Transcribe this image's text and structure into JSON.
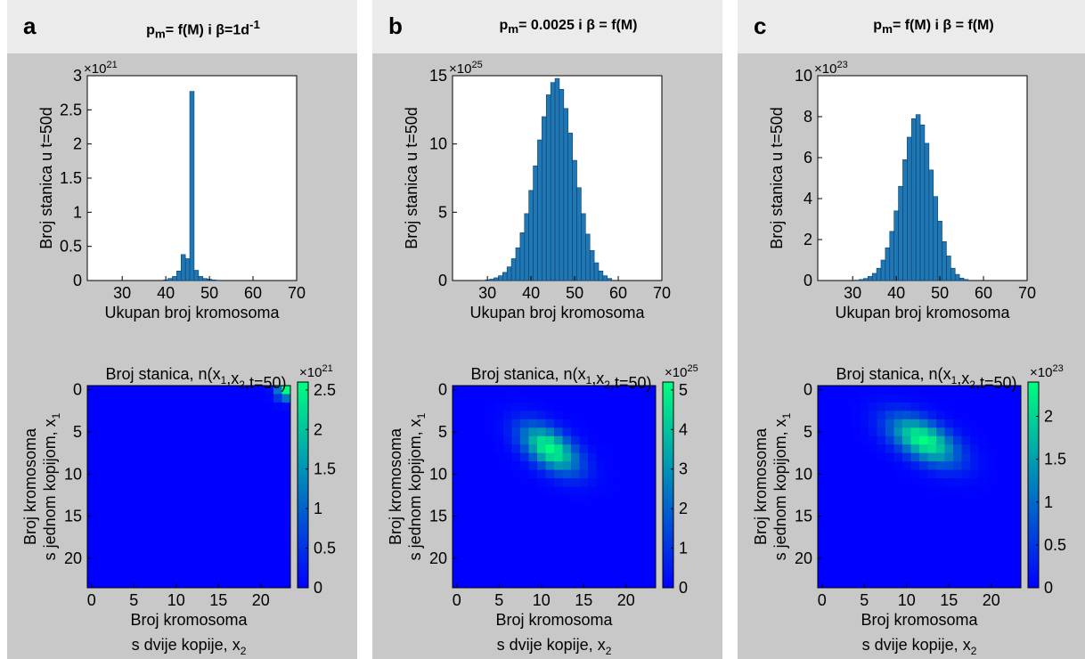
{
  "panels": [
    {
      "letter": "a",
      "title_html": "p<sub>m</sub>= f(M) i β=1d<sup>-1</sup>",
      "hist": {
        "ylabel": "Broj stanica u t=50d",
        "xlabel": "Ukupan broj kromosoma",
        "exp_base": "×10",
        "exp": "21",
        "yticks": [
          "0",
          "0.5",
          "1",
          "1.5",
          "2",
          "2.5",
          "3"
        ],
        "xticks": [
          "30",
          "40",
          "50",
          "60",
          "70"
        ]
      },
      "heat": {
        "title": "Broj stanica, n(x1,x2,t=50)",
        "ylabel1": "Broj kromosoma",
        "ylabel2": "s jednom kopijom, x1",
        "xlabel1": "Broj kromosoma",
        "xlabel2": "s dvije kopije, x2",
        "exp_base": "×10",
        "exp": "21",
        "cticks": [
          "0",
          "0.5",
          "1",
          "1.5",
          "2",
          "2.5"
        ],
        "yticks": [
          "0",
          "5",
          "10",
          "15",
          "20"
        ],
        "xticks": [
          "0",
          "5",
          "10",
          "15",
          "20"
        ]
      }
    },
    {
      "letter": "b",
      "title_html": "p<sub>m</sub>= 0.0025 i β = f(M)",
      "hist": {
        "ylabel": "Broj stanica u t=50d",
        "xlabel": "Ukupan broj kromosoma",
        "exp_base": "×10",
        "exp": "25",
        "yticks": [
          "0",
          "5",
          "10",
          "15"
        ],
        "xticks": [
          "30",
          "40",
          "50",
          "60",
          "70"
        ]
      },
      "heat": {
        "title": "Broj stanica, n(x1,x2,t=50)",
        "ylabel1": "Broj kromosoma",
        "ylabel2": "s jednom kopijom, x1",
        "xlabel1": "Broj kromosoma",
        "xlabel2": "s dvije kopije, x2",
        "exp_base": "×10",
        "exp": "25",
        "cticks": [
          "0",
          "1",
          "2",
          "3",
          "4",
          "5"
        ],
        "yticks": [
          "0",
          "5",
          "10",
          "15",
          "20"
        ],
        "xticks": [
          "0",
          "5",
          "10",
          "15",
          "20"
        ]
      }
    },
    {
      "letter": "c",
      "title_html": "p<sub>m</sub>= f(M) i β = f(M)",
      "hist": {
        "ylabel": "Broj stanica u t=50d",
        "xlabel": "Ukupan broj kromosoma",
        "exp_base": "×10",
        "exp": "23",
        "yticks": [
          "0",
          "2",
          "4",
          "6",
          "8",
          "10"
        ],
        "xticks": [
          "30",
          "40",
          "50",
          "60",
          "70"
        ]
      },
      "heat": {
        "title": "Broj stanica, n(x1,x2,t=50)",
        "ylabel1": "Broj kromosoma",
        "ylabel2": "s jednom kopijom, x1",
        "xlabel1": "Broj kromosoma",
        "xlabel2": "s dvije kopije, x2",
        "exp_base": "×10",
        "exp": "23",
        "cticks": [
          "0",
          "0.5",
          "1",
          "1.5",
          "2"
        ],
        "yticks": [
          "0",
          "5",
          "10",
          "15",
          "20"
        ],
        "xticks": [
          "0",
          "5",
          "10",
          "15",
          "20"
        ]
      }
    }
  ],
  "colors": {
    "bar": "#1f77b4",
    "cmap_low": "#0000ff",
    "cmap_high": "#00ff80",
    "panel_bg": "#c8c8c8",
    "header_bg": "#ebebeb"
  },
  "chart_data": [
    {
      "type": "bar",
      "panel": "a",
      "xlim": [
        22,
        70
      ],
      "ylim": [
        0,
        3
      ],
      "y_scale_exponent": 21,
      "x": [
        40,
        41,
        42,
        43,
        44,
        45,
        46,
        47,
        48,
        49,
        50,
        51,
        52
      ],
      "values": [
        0.01,
        0.03,
        0.06,
        0.14,
        0.38,
        0.32,
        2.77,
        0.15,
        0.06,
        0.03,
        0.02,
        0.01,
        0.005
      ]
    },
    {
      "type": "bar",
      "panel": "b",
      "xlim": [
        22,
        70
      ],
      "ylim": [
        0,
        15
      ],
      "y_scale_exponent": 25,
      "x": [
        29,
        30,
        31,
        32,
        33,
        34,
        35,
        36,
        37,
        38,
        39,
        40,
        41,
        42,
        43,
        44,
        45,
        46,
        47,
        48,
        49,
        50,
        51,
        52,
        53,
        54,
        55,
        56,
        57,
        58
      ],
      "values": [
        0.02,
        0.05,
        0.1,
        0.2,
        0.35,
        0.6,
        1.0,
        1.6,
        2.4,
        3.5,
        4.9,
        6.6,
        8.4,
        10.3,
        12.0,
        13.6,
        14.5,
        14.8,
        14.0,
        12.6,
        10.8,
        8.8,
        6.8,
        4.9,
        3.4,
        2.2,
        1.3,
        0.7,
        0.35,
        0.15
      ]
    },
    {
      "type": "bar",
      "panel": "c",
      "xlim": [
        22,
        70
      ],
      "ylim": [
        0,
        10
      ],
      "y_scale_exponent": 23,
      "x": [
        31,
        32,
        33,
        34,
        35,
        36,
        37,
        38,
        39,
        40,
        41,
        42,
        43,
        44,
        45,
        46,
        47,
        48,
        49,
        50,
        51,
        52,
        53,
        54,
        55,
        56
      ],
      "values": [
        0.02,
        0.05,
        0.1,
        0.2,
        0.35,
        0.6,
        1.0,
        1.6,
        2.4,
        3.4,
        4.6,
        5.9,
        7.0,
        7.9,
        8.1,
        7.6,
        6.7,
        5.4,
        4.1,
        2.9,
        1.9,
        1.2,
        0.6,
        0.3,
        0.12,
        0.05
      ]
    },
    {
      "type": "heatmap",
      "panel": "a",
      "grid_size": 24,
      "xlim": [
        0,
        23
      ],
      "ylim": [
        0,
        23
      ],
      "clim": [
        0,
        2.6
      ],
      "c_scale_exponent": 21,
      "peak": {
        "x2": 23,
        "x1": 0,
        "value": 2.6
      },
      "spread": {
        "sigma_x2": 0.8,
        "sigma_x1": 0.8
      }
    },
    {
      "type": "heatmap",
      "panel": "b",
      "grid_size": 24,
      "xlim": [
        0,
        23
      ],
      "ylim": [
        0,
        23
      ],
      "clim": [
        0,
        5.2
      ],
      "c_scale_exponent": 25,
      "peak": {
        "x2": 11,
        "x1": 7,
        "value": 5.2
      },
      "spread": {
        "sigma_x2": 2.4,
        "sigma_x1": 2.0,
        "correlation": 0.55
      }
    },
    {
      "type": "heatmap",
      "panel": "c",
      "grid_size": 24,
      "xlim": [
        0,
        23
      ],
      "ylim": [
        0,
        23
      ],
      "clim": [
        0,
        2.4
      ],
      "c_scale_exponent": 23,
      "peak": {
        "x2": 12,
        "x1": 6,
        "value": 2.4
      },
      "spread": {
        "sigma_x2": 2.8,
        "sigma_x1": 2.0,
        "correlation": 0.55
      }
    }
  ]
}
